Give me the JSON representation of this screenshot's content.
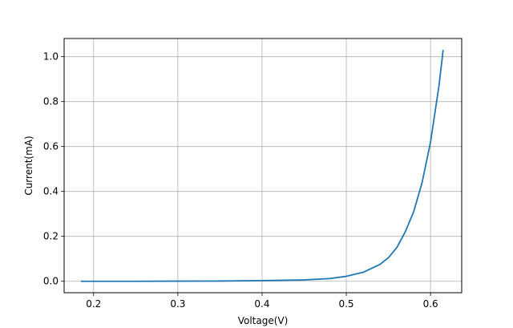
{
  "chart_data": {
    "type": "line",
    "title": "",
    "xlabel": "Voltage(V)",
    "ylabel": "Current(mA)",
    "xlim": [
      0.165,
      0.637
    ],
    "ylim": [
      -0.051,
      1.081
    ],
    "grid": true,
    "x_ticks": [
      0.2,
      0.3,
      0.4,
      0.5,
      0.6
    ],
    "x_tick_labels": [
      "0.2",
      "0.3",
      "0.4",
      "0.5",
      "0.6"
    ],
    "y_ticks": [
      0.0,
      0.2,
      0.4,
      0.6,
      0.8,
      1.0
    ],
    "y_tick_labels": [
      "0.0",
      "0.2",
      "0.4",
      "0.6",
      "0.8",
      "1.0"
    ],
    "series": [
      {
        "color": "#1f77b4",
        "x": [
          0.185,
          0.25,
          0.3,
          0.35,
          0.4,
          0.45,
          0.48,
          0.5,
          0.52,
          0.54,
          0.55,
          0.56,
          0.57,
          0.58,
          0.59,
          0.6,
          0.61,
          0.615
        ],
        "y": [
          0.0,
          0.0,
          0.0005,
          0.001,
          0.003,
          0.006,
          0.012,
          0.022,
          0.04,
          0.075,
          0.105,
          0.15,
          0.22,
          0.31,
          0.44,
          0.62,
          0.87,
          1.03
        ]
      }
    ]
  }
}
